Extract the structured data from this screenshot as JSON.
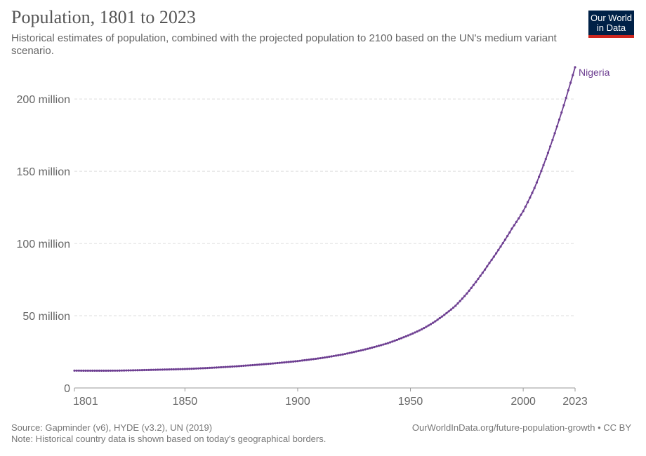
{
  "header": {
    "title": "Population, 1801 to 2023",
    "subtitle": "Historical estimates of population, combined with the projected population to 2100 based on the UN's medium variant scenario.",
    "logo_line1": "Our World",
    "logo_line2": "in Data"
  },
  "footer": {
    "source": "Source: Gapminder (v6), HYDE (v3.2), UN (2019)",
    "note": "Note: Historical country data is shown based on today's geographical borders.",
    "url_license": "OurWorldInData.org/future-population-growth • CC BY"
  },
  "chart_data": {
    "type": "line",
    "xlim": [
      1801,
      2023
    ],
    "ylim": [
      0,
      220000000
    ],
    "x_ticks": [
      1801,
      1850,
      1900,
      1950,
      2000,
      2023
    ],
    "x_tick_labels": [
      "1801",
      "1850",
      "1900",
      "1950",
      "2000",
      "2023"
    ],
    "y_ticks": [
      0,
      50000000,
      100000000,
      150000000,
      200000000
    ],
    "y_tick_labels": [
      "0",
      "50 million",
      "100 million",
      "150 million",
      "200 million"
    ],
    "grid": "horizontal",
    "colors": {
      "series": "#6d3e91",
      "grid": "#dddddd",
      "axis": "#999999"
    },
    "series": [
      {
        "name": "Nigeria",
        "anchors": [
          [
            1801,
            12000000
          ],
          [
            1810,
            11950000
          ],
          [
            1820,
            12000000
          ],
          [
            1830,
            12300000
          ],
          [
            1840,
            12700000
          ],
          [
            1850,
            13100000
          ],
          [
            1860,
            13800000
          ],
          [
            1870,
            14700000
          ],
          [
            1880,
            15800000
          ],
          [
            1890,
            17100000
          ],
          [
            1900,
            18600000
          ],
          [
            1910,
            20600000
          ],
          [
            1920,
            23200000
          ],
          [
            1930,
            26700000
          ],
          [
            1940,
            31000000
          ],
          [
            1950,
            37000000
          ],
          [
            1955,
            40600000
          ],
          [
            1960,
            45100000
          ],
          [
            1965,
            50600000
          ],
          [
            1970,
            56900000
          ],
          [
            1975,
            65400000
          ],
          [
            1980,
            75500000
          ],
          [
            1985,
            86500000
          ],
          [
            1990,
            97900000
          ],
          [
            1995,
            110300000
          ],
          [
            2000,
            122400000
          ],
          [
            2005,
            138400000
          ],
          [
            2010,
            158500000
          ],
          [
            2015,
            181100000
          ],
          [
            2020,
            206100000
          ],
          [
            2023,
            222000000
          ]
        ]
      }
    ]
  }
}
